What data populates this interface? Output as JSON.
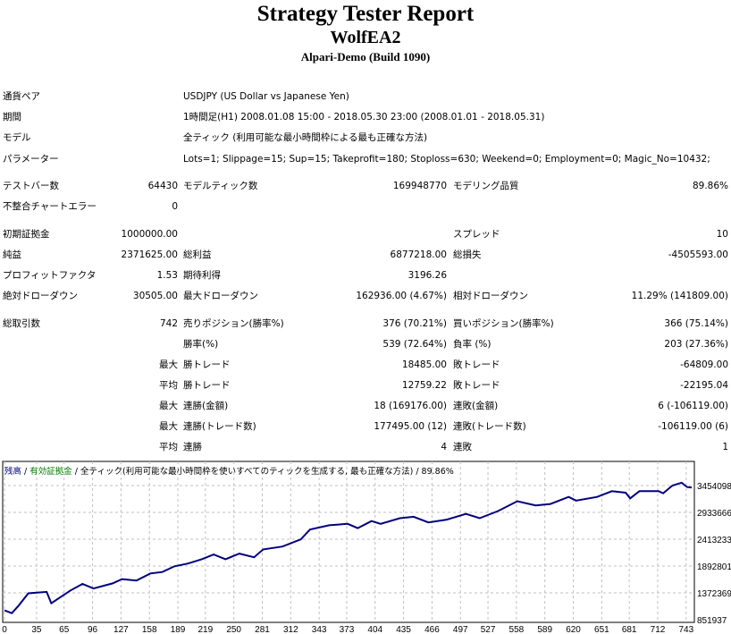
{
  "header": {
    "title": "Strategy Tester Report",
    "ea_name": "WolfEA2",
    "server": "Alpari-Demo (Build 1090)"
  },
  "rows": [
    [
      "通貨ペア",
      "",
      "USDJPY (US Dollar vs Japanese Yen)",
      "",
      "",
      ""
    ],
    [
      "期間",
      "",
      "1時間足(H1) 2008.01.08 15:00 - 2018.05.30 23:00 (2008.01.01 - 2018.05.31)",
      "",
      "",
      ""
    ],
    [
      "モデル",
      "",
      "全ティック (利用可能な最小時間枠による最も正確な方法)",
      "",
      "",
      ""
    ],
    [
      "パラメーター",
      "",
      "Lots=1; Slippage=15; Sup=15; Takeprofit=180; Stoploss=630; Weekend=0; Employment=0; Magic_No=10432;",
      "",
      "",
      ""
    ],
    [
      "テストバー数",
      "64430",
      "モデルティック数",
      "169948770",
      "モデリング品質",
      "89.86%"
    ],
    [
      "不整合チャートエラー",
      "0",
      "",
      "",
      "",
      ""
    ],
    [
      "初期証拠金",
      "1000000.00",
      "",
      "",
      "スプレッド",
      "10"
    ],
    [
      "純益",
      "2371625.00",
      "総利益",
      "6877218.00",
      "総損失",
      "-4505593.00"
    ],
    [
      "プロフィットファクタ",
      "1.53",
      "期待利得",
      "3196.26",
      "",
      ""
    ],
    [
      "絶対ドローダウン",
      "30505.00",
      "最大ドローダウン",
      "162936.00 (4.67%)",
      "相対ドローダウン",
      "11.29% (141809.00)"
    ],
    [
      "総取引数",
      "742",
      "売りポジション(勝率%)",
      "376 (70.21%)",
      "買いポジション(勝率%)",
      "366 (75.14%)"
    ],
    [
      "",
      "",
      "勝率(%)",
      "539 (72.64%)",
      "負率 (%)",
      "203 (27.36%)"
    ],
    [
      "",
      "最大",
      "勝トレード",
      "18485.00",
      "敗トレード",
      "-64809.00"
    ],
    [
      "",
      "平均",
      "勝トレード",
      "12759.22",
      "敗トレード",
      "-22195.04"
    ],
    [
      "",
      "最大",
      "連勝(金額)",
      "18 (169176.00)",
      "連敗(金額)",
      "6 (-106119.00)"
    ],
    [
      "",
      "最大",
      "連勝(トレード数)",
      "177495.00 (12)",
      "連敗(トレード数)",
      "-106119.00 (6)"
    ],
    [
      "",
      "平均",
      "連勝",
      "4",
      "連敗",
      "1"
    ]
  ],
  "chart_data": {
    "type": "line",
    "legend": {
      "balance": "残高",
      "sep1": " / ",
      "equity": "有効証拠金",
      "sep2": " / ",
      "desc": "全ティック(利用可能な最小時間枠を使いすべてのティックを生成する, 最も正確な方法) / 89.86%"
    },
    "colors": {
      "balance": "#000080",
      "equity": "#008000",
      "grid": "#c0c0c0"
    },
    "ylim": [
      851937,
      3454098
    ],
    "y_ticks": [
      "3454098",
      "2933666",
      "2413233",
      "1892801",
      "1372369",
      "851937"
    ],
    "xlim": [
      0,
      750
    ],
    "x_ticks": [
      "0",
      "35",
      "65",
      "96",
      "127",
      "158",
      "189",
      "219",
      "250",
      "281",
      "312",
      "343",
      "373",
      "404",
      "435",
      "466",
      "497",
      "527",
      "558",
      "589",
      "620",
      "651",
      "681",
      "712",
      "743"
    ],
    "series": [
      {
        "name": "残高",
        "x": [
          0,
          8,
          15,
          26,
          46,
          51,
          72,
          85,
          97,
          118,
          128,
          144,
          159,
          172,
          185,
          200,
          215,
          228,
          241,
          256,
          272,
          282,
          303,
          323,
          333,
          354,
          374,
          385,
          400,
          410,
          431,
          446,
          462,
          482,
          503,
          518,
          538,
          559,
          579,
          595,
          615,
          623,
          646,
          662,
          677,
          682,
          692,
          713,
          718,
          728,
          738,
          744,
          749
        ],
        "y": [
          1033000,
          978000,
          1116000,
          1364000,
          1391000,
          1171000,
          1419000,
          1545000,
          1457000,
          1556000,
          1639000,
          1611000,
          1749000,
          1776000,
          1886000,
          1941000,
          2024000,
          2117000,
          2024000,
          2134000,
          2062000,
          2216000,
          2271000,
          2409000,
          2601000,
          2684000,
          2711000,
          2629000,
          2766000,
          2711000,
          2821000,
          2849000,
          2739000,
          2794000,
          2904000,
          2821000,
          2959000,
          3151000,
          3069000,
          3096000,
          3234000,
          3162000,
          3234000,
          3344000,
          3316000,
          3206000,
          3344000,
          3344000,
          3305000,
          3454000,
          3509000,
          3426000,
          3415000
        ]
      }
    ]
  }
}
